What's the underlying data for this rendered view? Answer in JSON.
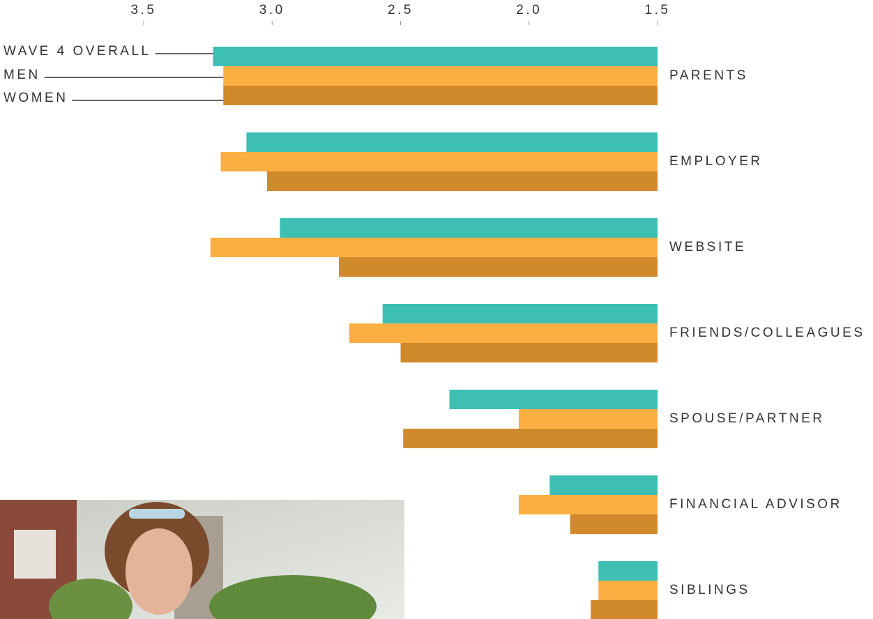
{
  "chart_data": {
    "type": "hbar",
    "categories": [
      "PARENTS",
      "EMPLOYER",
      "WEBSITE",
      "FRIENDS/COLLEAGUES",
      "SPOUSE/PARTNER",
      "FINANCIAL ADVISOR",
      "SIBLINGS"
    ],
    "series": [
      {
        "name": "WAVE 4 OVERALL",
        "color": "#3dbfb4",
        "values": [
          3.23,
          3.1,
          2.97,
          2.57,
          2.31,
          1.92,
          1.73
        ]
      },
      {
        "name": "MEN",
        "color": "#fbae42",
        "values": [
          3.19,
          3.2,
          3.24,
          2.7,
          2.04,
          2.04,
          1.73
        ]
      },
      {
        "name": "WOMEN",
        "color": "#d08a2c",
        "values": [
          3.19,
          3.02,
          2.74,
          2.5,
          2.49,
          1.84,
          1.76
        ]
      }
    ],
    "xlim": [
      1.5,
      3.5
    ],
    "xticks": [
      {
        "value": 3.5,
        "label": "3.5"
      },
      {
        "value": 3.0,
        "label": "3.0"
      },
      {
        "value": 2.5,
        "label": "2.5"
      },
      {
        "value": 2.0,
        "label": "2.0"
      },
      {
        "value": 1.5,
        "label": "1.5"
      }
    ]
  }
}
